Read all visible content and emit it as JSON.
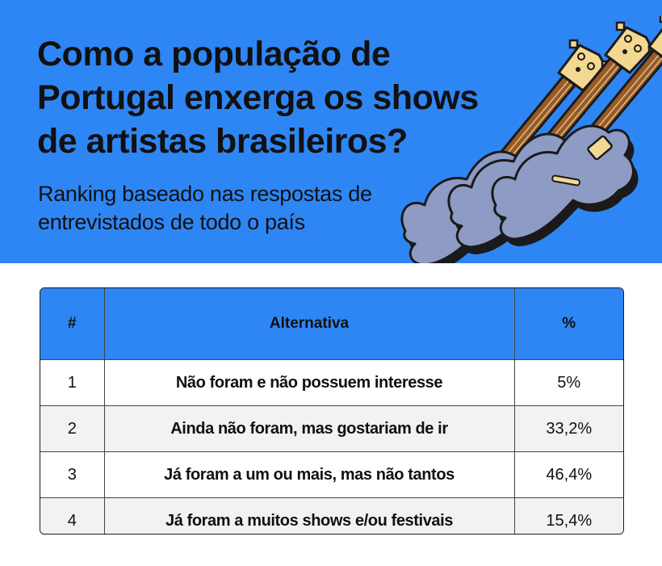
{
  "header": {
    "title": "Como a população de Portugal enxerga os shows de artistas brasileiros?",
    "subtitle": "Ranking baseado nas respostas de entrevistados de todo o país"
  },
  "colors": {
    "accent_blue": "#2e86f5",
    "guitar_body": "#8e9bc4",
    "guitar_neck": "#9a5a25",
    "guitar_head": "#f3d891",
    "outline": "#1a1a1a"
  },
  "decoration": {
    "icon": "electric-guitars-illustration-icon"
  },
  "chart_data": {
    "type": "table",
    "columns": [
      "#",
      "Alternativa",
      "%"
    ],
    "rows": [
      {
        "rank": "1",
        "alternative": "Não foram e não possuem interesse",
        "percent": "5%",
        "value": 5
      },
      {
        "rank": "2",
        "alternative": "Ainda não foram, mas gostariam de ir",
        "percent": "33,2%",
        "value": 33.2
      },
      {
        "rank": "3",
        "alternative": "Já foram a um ou mais, mas não tantos",
        "percent": "46,4%",
        "value": 46.4
      },
      {
        "rank": "4",
        "alternative": "Já foram a muitos shows e/ou festivais",
        "percent": "15,4%",
        "value": 15.4
      }
    ]
  }
}
